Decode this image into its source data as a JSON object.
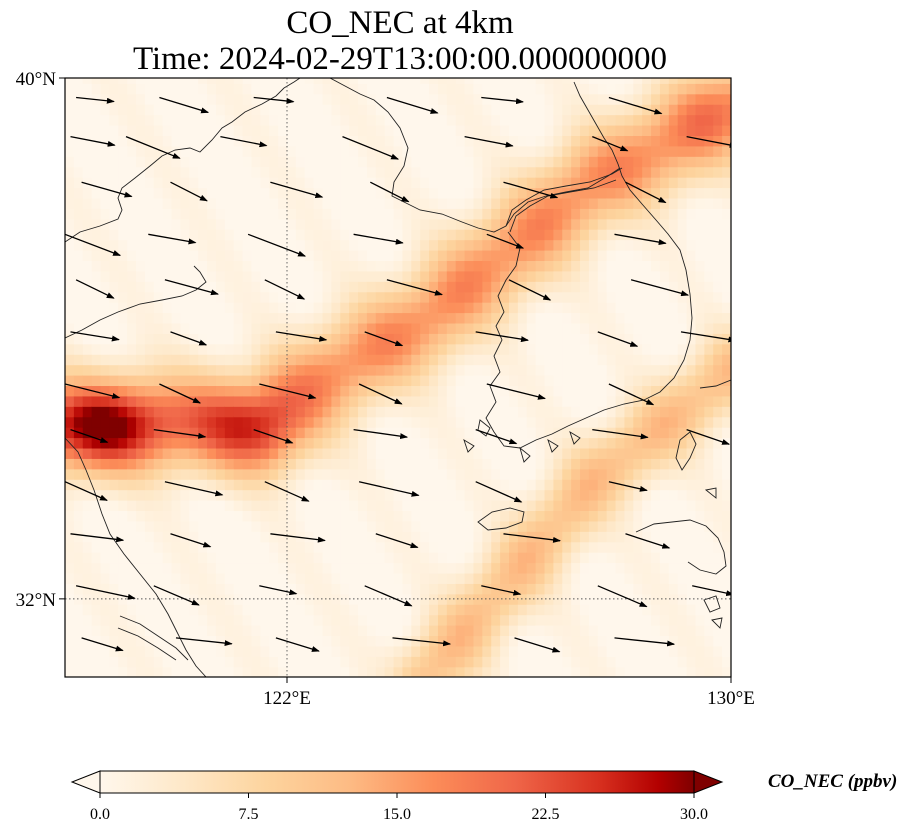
{
  "figure": {
    "title_line1": "CO_NEC at 4km",
    "title_line2": "Time: 2024-02-29T13:00:00.000000000"
  },
  "map": {
    "extent": {
      "lon": [
        118,
        130
      ],
      "lat": [
        30.8,
        40
      ]
    },
    "lat_ticks": [
      {
        "value": 40,
        "label": "40°N"
      },
      {
        "value": 32,
        "label": "32°N"
      }
    ],
    "lon_ticks": [
      {
        "value": 122,
        "label": "122°E"
      },
      {
        "value": 130,
        "label": "130°E"
      }
    ],
    "gridlines": [
      {
        "axis": "lon",
        "value": 122
      },
      {
        "axis": "lat",
        "value": 32
      }
    ],
    "field": {
      "variable": "CO_NEC",
      "units": "ppbv",
      "plume_axis_points": [
        [
          118,
          34.7
        ],
        [
          121.5,
          34.8
        ],
        [
          124.5,
          36.3
        ],
        [
          127.5,
          38.4
        ],
        [
          130,
          39.5
        ]
      ],
      "secondary_band_points": [
        [
          124.5,
          30.8
        ],
        [
          127.5,
          33.8
        ],
        [
          130,
          35.5
        ]
      ],
      "core_regions": [
        {
          "lon": 118.7,
          "lat": 34.6,
          "value": 30
        },
        {
          "lon": 121.4,
          "lat": 34.5,
          "value": 26
        }
      ]
    },
    "colorbar": {
      "label": "CO_NEC (ppbv)",
      "vmin": 0,
      "vmax": 30,
      "extend": "both",
      "colormap": "OrRd",
      "ticks": [
        "0.0",
        "7.5",
        "15.0",
        "22.5",
        "30.0"
      ]
    },
    "wind_vectors": {
      "direction": "eastward to east-south-east",
      "rows": [
        {
          "lat": 39.7,
          "lons": [
            118.2,
            119.7,
            121.4,
            123.8,
            125.5,
            127.8
          ]
        },
        {
          "lat": 39.1,
          "lons": [
            118.1,
            119.1,
            120.8,
            123.0,
            125.2,
            127.5,
            129.2
          ]
        },
        {
          "lat": 38.4,
          "lons": [
            118.3,
            119.9,
            121.7,
            123.5,
            125.9,
            128.1
          ]
        },
        {
          "lat": 37.6,
          "lons": [
            118.0,
            119.5,
            121.3,
            123.2,
            125.6,
            127.9
          ]
        },
        {
          "lat": 36.9,
          "lons": [
            118.2,
            119.8,
            121.6,
            123.8,
            126.0,
            128.2
          ]
        },
        {
          "lat": 36.1,
          "lons": [
            118.1,
            119.9,
            121.8,
            123.4,
            125.4,
            127.6,
            129.1
          ]
        },
        {
          "lat": 35.3,
          "lons": [
            118.0,
            119.7,
            121.5,
            123.3,
            125.6,
            127.8
          ]
        },
        {
          "lat": 34.6,
          "lons": [
            118.1,
            119.6,
            121.4,
            123.2,
            125.4,
            127.5,
            129.2
          ]
        },
        {
          "lat": 33.8,
          "lons": [
            118.0,
            119.8,
            121.6,
            123.3,
            125.4,
            127.8
          ]
        },
        {
          "lat": 33.0,
          "lons": [
            118.1,
            119.9,
            121.7,
            123.6,
            125.9,
            128.1
          ]
        },
        {
          "lat": 32.2,
          "lons": [
            118.2,
            119.6,
            121.5,
            123.4,
            125.5,
            127.6,
            129.3
          ]
        },
        {
          "lat": 31.4,
          "lons": [
            118.3,
            120.0,
            121.8,
            123.9,
            126.1,
            127.9
          ]
        }
      ]
    }
  }
}
